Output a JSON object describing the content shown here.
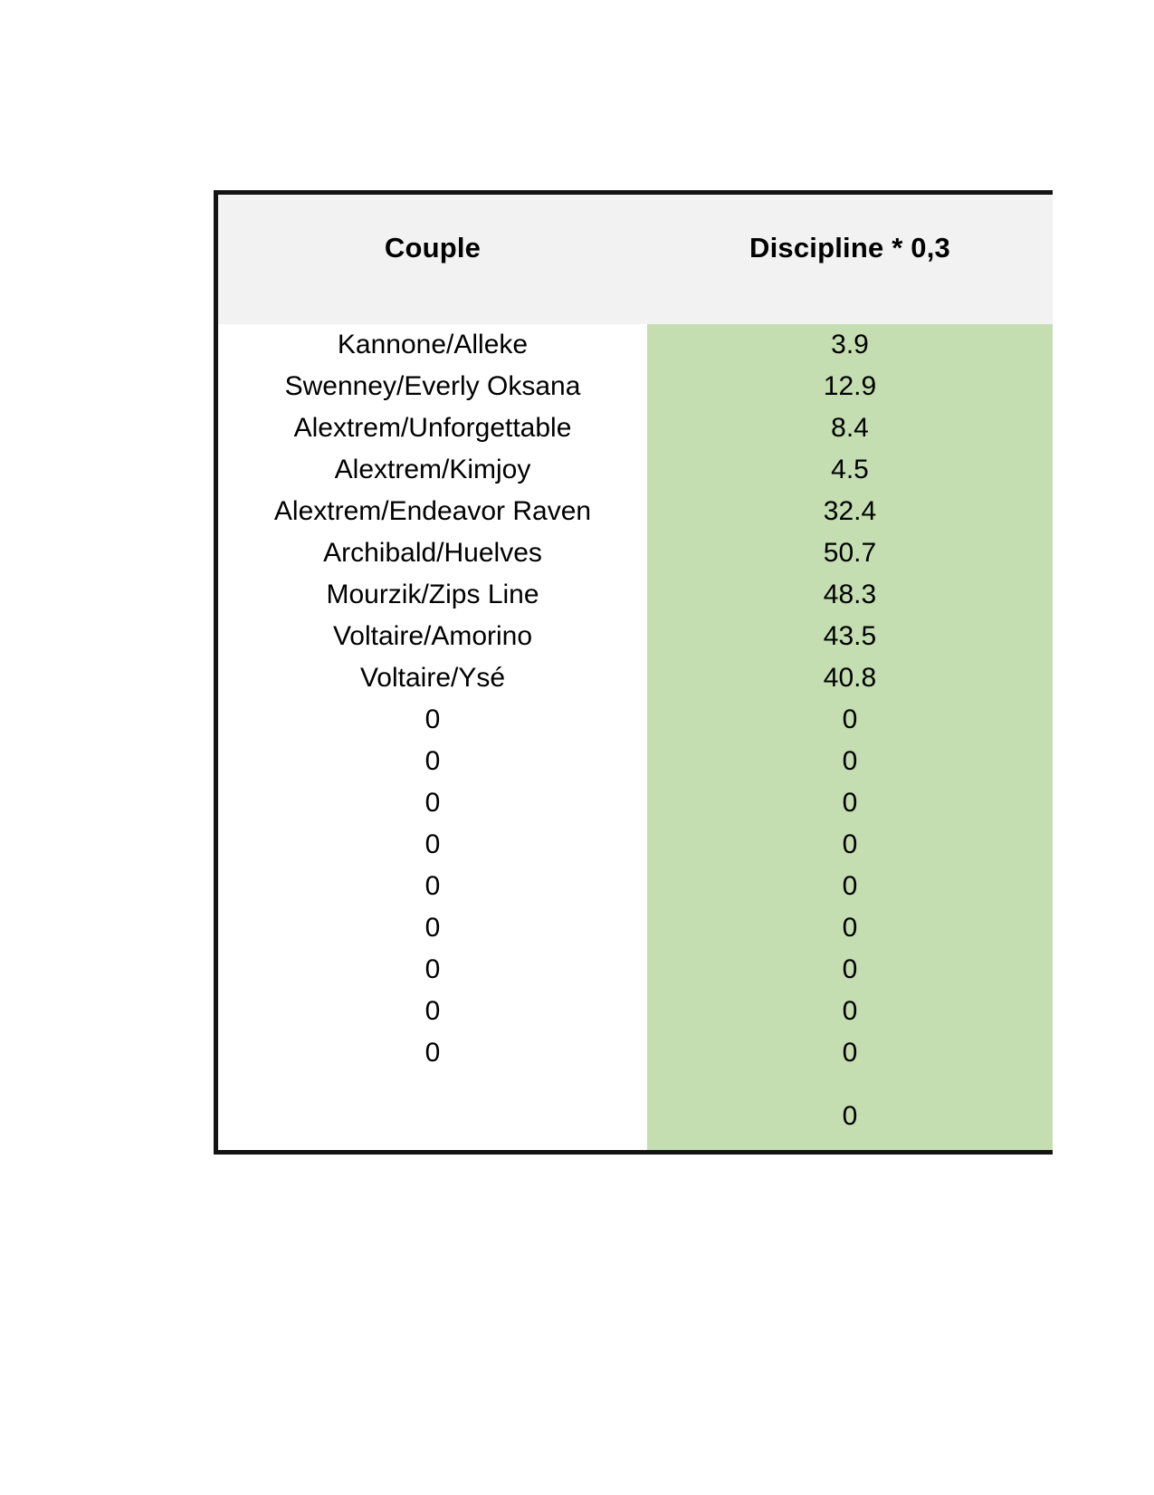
{
  "table": {
    "columns": [
      {
        "label": "Couple"
      },
      {
        "label": "Discipline * 0,3"
      }
    ],
    "rows": [
      {
        "couple": "Kannone/Alleke",
        "discipline": "3.9"
      },
      {
        "couple": "Swenney/Everly Oksana",
        "discipline": "12.9"
      },
      {
        "couple": "Alextrem/Unforgettable",
        "discipline": "8.4"
      },
      {
        "couple": "Alextrem/Kimjoy",
        "discipline": "4.5"
      },
      {
        "couple": "Alextrem/Endeavor Raven",
        "discipline": "32.4"
      },
      {
        "couple": "Archibald/Huelves",
        "discipline": "50.7"
      },
      {
        "couple": "Mourzik/Zips Line",
        "discipline": "48.3"
      },
      {
        "couple": "Voltaire/Amorino",
        "discipline": "43.5"
      },
      {
        "couple": "Voltaire/Ysé",
        "discipline": "40.8"
      },
      {
        "couple": "0",
        "discipline": "0"
      },
      {
        "couple": "0",
        "discipline": "0"
      },
      {
        "couple": "0",
        "discipline": "0"
      },
      {
        "couple": "0",
        "discipline": "0"
      },
      {
        "couple": "0",
        "discipline": "0"
      },
      {
        "couple": "0",
        "discipline": "0"
      },
      {
        "couple": "0",
        "discipline": "0"
      },
      {
        "couple": "0",
        "discipline": "0"
      },
      {
        "couple": "0",
        "discipline": "0"
      },
      {
        "couple": "",
        "discipline": "0",
        "tall": true
      }
    ],
    "colors": {
      "header_bg": "#f2f2f2",
      "value_column_bg": "#c4deb2",
      "border": "#141414",
      "text": "#000000"
    }
  }
}
